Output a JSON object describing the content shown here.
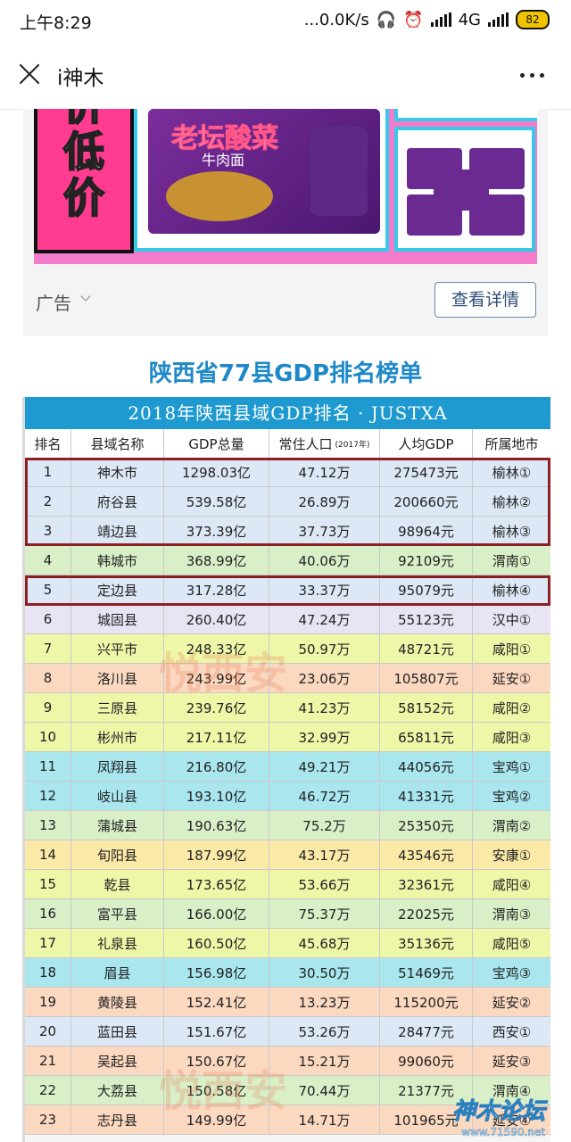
{
  "status_bar": {
    "time": "上午8:29",
    "network_speed": "...0.0K/s",
    "network_type": "4G",
    "battery": "82"
  },
  "nav": {
    "title": "i神木"
  },
  "ad": {
    "left_text": [
      "价",
      "低",
      "价"
    ],
    "product_name": "老坛酸菜",
    "product_sub": "牛肉面",
    "label": "广告",
    "details_button": "查看详情"
  },
  "article": {
    "heading": "陕西省77县GDP排名榜单"
  },
  "table": {
    "title": "2018年陕西县域GDP排名 · JUSTXA",
    "headers": [
      "排名",
      "县域名称",
      "GDP总量",
      "常住人口",
      "人均GDP",
      "所属地市"
    ],
    "population_note": "(2017年)",
    "rows": [
      {
        "rank": "1",
        "name": "神木市",
        "gdp": "1298.03亿",
        "pop": "47.12万",
        "per": "275473元",
        "city": "榆林①",
        "color": "#dde8f6"
      },
      {
        "rank": "2",
        "name": "府谷县",
        "gdp": "539.58亿",
        "pop": "26.89万",
        "per": "200660元",
        "city": "榆林②",
        "color": "#dde8f6"
      },
      {
        "rank": "3",
        "name": "靖边县",
        "gdp": "373.39亿",
        "pop": "37.73万",
        "per": "98964元",
        "city": "榆林③",
        "color": "#dde8f6"
      },
      {
        "rank": "4",
        "name": "韩城市",
        "gdp": "368.99亿",
        "pop": "40.06万",
        "per": "92109元",
        "city": "渭南①",
        "color": "#d9efc8"
      },
      {
        "rank": "5",
        "name": "定边县",
        "gdp": "317.28亿",
        "pop": "33.37万",
        "per": "95079元",
        "city": "榆林④",
        "color": "#dde8f6"
      },
      {
        "rank": "6",
        "name": "城固县",
        "gdp": "260.40亿",
        "pop": "47.24万",
        "per": "55123元",
        "city": "汉中①",
        "color": "#e8e4f3"
      },
      {
        "rank": "7",
        "name": "兴平市",
        "gdp": "248.33亿",
        "pop": "50.97万",
        "per": "48721元",
        "city": "咸阳①",
        "color": "#eef6a8"
      },
      {
        "rank": "8",
        "name": "洛川县",
        "gdp": "243.99亿",
        "pop": "23.06万",
        "per": "105807元",
        "city": "延安①",
        "color": "#fbd8c0"
      },
      {
        "rank": "9",
        "name": "三原县",
        "gdp": "239.76亿",
        "pop": "41.23万",
        "per": "58152元",
        "city": "咸阳②",
        "color": "#eef6a8"
      },
      {
        "rank": "10",
        "name": "彬州市",
        "gdp": "217.11亿",
        "pop": "32.99万",
        "per": "65811元",
        "city": "咸阳③",
        "color": "#eef6a8"
      },
      {
        "rank": "11",
        "name": "凤翔县",
        "gdp": "216.80亿",
        "pop": "49.21万",
        "per": "44056元",
        "city": "宝鸡①",
        "color": "#a9e6ee"
      },
      {
        "rank": "12",
        "name": "岐山县",
        "gdp": "193.10亿",
        "pop": "46.72万",
        "per": "41331元",
        "city": "宝鸡②",
        "color": "#a9e6ee"
      },
      {
        "rank": "13",
        "name": "蒲城县",
        "gdp": "190.63亿",
        "pop": "75.2万",
        "per": "25350元",
        "city": "渭南②",
        "color": "#d9efc8"
      },
      {
        "rank": "14",
        "name": "旬阳县",
        "gdp": "187.99亿",
        "pop": "43.17万",
        "per": "43546元",
        "city": "安康①",
        "color": "#fbe9a8"
      },
      {
        "rank": "15",
        "name": "乾县",
        "gdp": "173.65亿",
        "pop": "53.66万",
        "per": "32361元",
        "city": "咸阳④",
        "color": "#eef6a8"
      },
      {
        "rank": "16",
        "name": "富平县",
        "gdp": "166.00亿",
        "pop": "75.37万",
        "per": "22025元",
        "city": "渭南③",
        "color": "#d9efc8"
      },
      {
        "rank": "17",
        "name": "礼泉县",
        "gdp": "160.50亿",
        "pop": "45.68万",
        "per": "35136元",
        "city": "咸阳⑤",
        "color": "#eef6a8"
      },
      {
        "rank": "18",
        "name": "眉县",
        "gdp": "156.98亿",
        "pop": "30.50万",
        "per": "51469元",
        "city": "宝鸡③",
        "color": "#a9e6ee"
      },
      {
        "rank": "19",
        "name": "黄陵县",
        "gdp": "152.41亿",
        "pop": "13.23万",
        "per": "115200元",
        "city": "延安②",
        "color": "#fbd8c0"
      },
      {
        "rank": "20",
        "name": "蓝田县",
        "gdp": "151.67亿",
        "pop": "53.26万",
        "per": "28477元",
        "city": "西安①",
        "color": "#dde8f6"
      },
      {
        "rank": "21",
        "name": "吴起县",
        "gdp": "150.67亿",
        "pop": "15.21万",
        "per": "99060元",
        "city": "延安③",
        "color": "#fbd8c0"
      },
      {
        "rank": "22",
        "name": "大荔县",
        "gdp": "150.58亿",
        "pop": "70.44万",
        "per": "21377元",
        "city": "渭南④",
        "color": "#d9efc8"
      },
      {
        "rank": "23",
        "name": "志丹县",
        "gdp": "149.99亿",
        "pop": "14.71万",
        "per": "101965元",
        "city": "延安④",
        "color": "#fbd8c0"
      }
    ]
  },
  "watermark": {
    "text": "悦西安"
  },
  "forum": {
    "name": "神木论坛",
    "url": "www.71590.net"
  }
}
